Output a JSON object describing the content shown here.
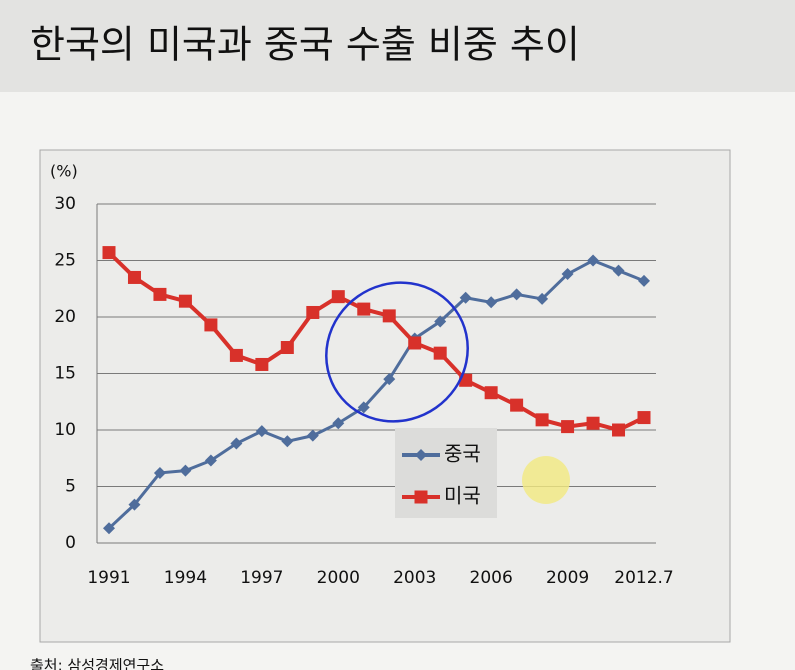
{
  "chart_data": {
    "type": "line",
    "title": "한국의 미국과 중국 수출 비중 추이",
    "y_unit_label": "(%)",
    "source": "출처: 삼성경제연구소",
    "categories": [
      "1991",
      null,
      null,
      "1994",
      null,
      null,
      "1997",
      null,
      null,
      "2000",
      null,
      null,
      "2003",
      null,
      null,
      "2006",
      null,
      null,
      "2009",
      null,
      null,
      "2012.7"
    ],
    "series": [
      {
        "name": "중국",
        "color": "#4f6d9c",
        "marker": "diamond",
        "values": [
          1.3,
          3.4,
          6.2,
          6.4,
          7.3,
          8.8,
          9.9,
          9.0,
          9.5,
          10.6,
          12.0,
          14.5,
          18.1,
          19.6,
          21.7,
          21.3,
          22.0,
          21.6,
          23.8,
          25.0,
          24.1,
          23.2
        ]
      },
      {
        "name": "미국",
        "color": "#d8312a",
        "marker": "square",
        "values": [
          25.7,
          23.5,
          22.0,
          21.4,
          19.3,
          16.6,
          15.8,
          17.3,
          20.4,
          21.8,
          20.7,
          20.1,
          17.7,
          16.8,
          14.4,
          13.3,
          12.2,
          10.9,
          10.3,
          10.6,
          10.0,
          11.1
        ]
      }
    ],
    "ylim": [
      0,
      30
    ],
    "yticks": [
      0,
      5,
      10,
      15,
      20,
      25,
      30
    ],
    "grid": true
  }
}
